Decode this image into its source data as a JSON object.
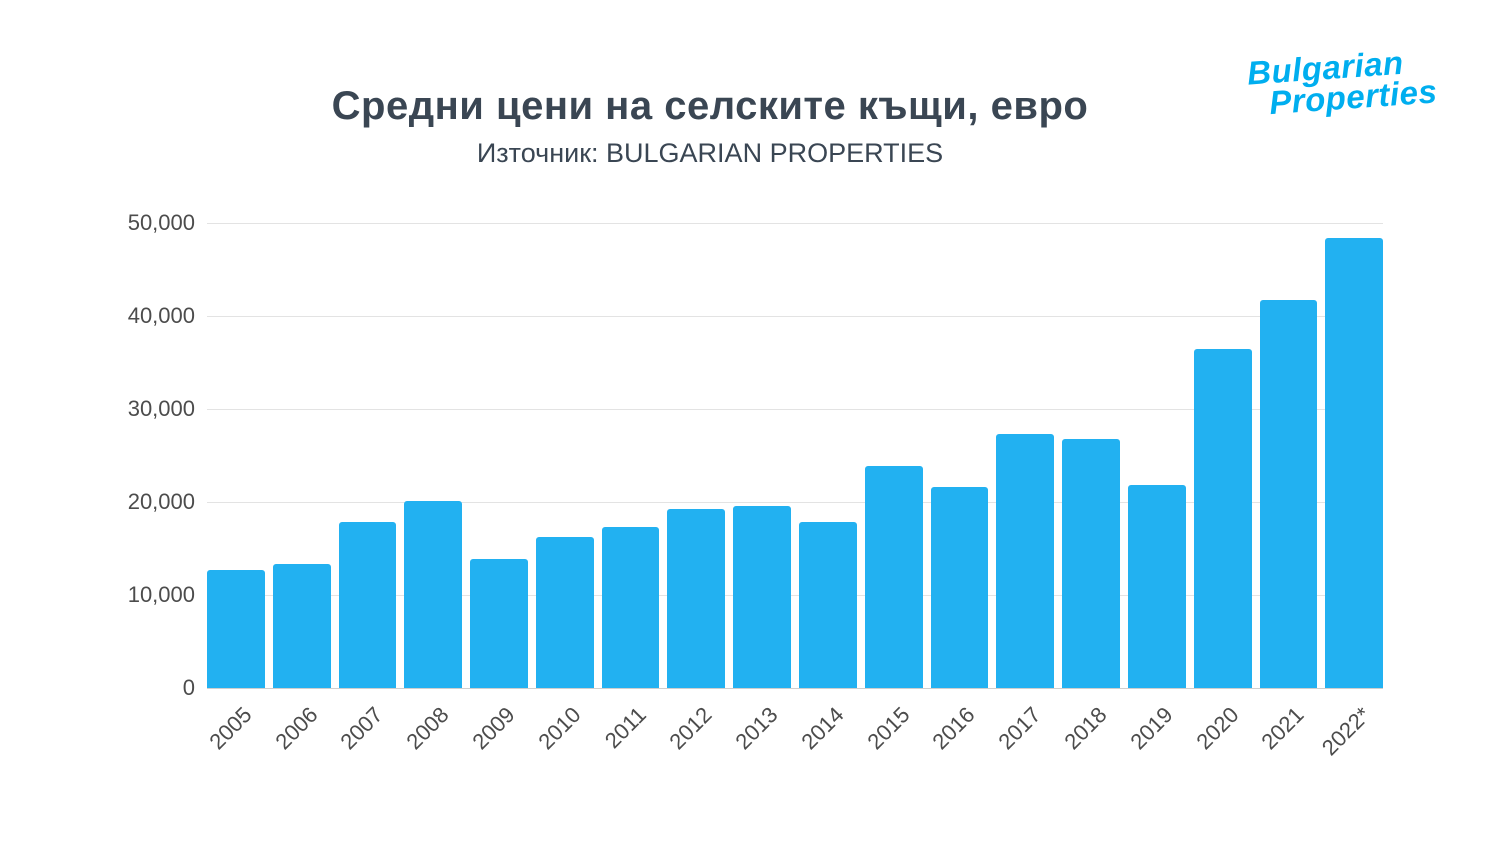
{
  "logo": {
    "line1": "Bulgarian",
    "line2": "Properties"
  },
  "chart_data": {
    "type": "bar",
    "title": "Средни цени на селските къщи, евро",
    "subtitle": "Източник: BULGARIAN PROPERTIES",
    "categories": [
      "2005",
      "2006",
      "2007",
      "2008",
      "2009",
      "2010",
      "2011",
      "2012",
      "2013",
      "2014",
      "2015",
      "2016",
      "2017",
      "2018",
      "2019",
      "2020",
      "2021",
      "2022*"
    ],
    "values": [
      12700,
      13300,
      17800,
      20100,
      13900,
      16200,
      17300,
      19200,
      19600,
      17900,
      23900,
      21600,
      27300,
      26800,
      21800,
      36500,
      41700,
      48400
    ],
    "xlabel": "",
    "ylabel": "",
    "ylim": [
      0,
      50000
    ],
    "yticks": [
      0,
      10000,
      20000,
      30000,
      40000,
      50000
    ],
    "ytick_labels": [
      "0",
      "10,000",
      "20,000",
      "30,000",
      "40,000",
      "50,000"
    ],
    "grid": true,
    "legend_position": "none",
    "bar_color": "#22b1f1",
    "colors": {
      "logo": "#00aeef",
      "title_text": "#3a4653",
      "axis_text": "#4c4c4c",
      "gridline": "#e3e3e3"
    }
  }
}
